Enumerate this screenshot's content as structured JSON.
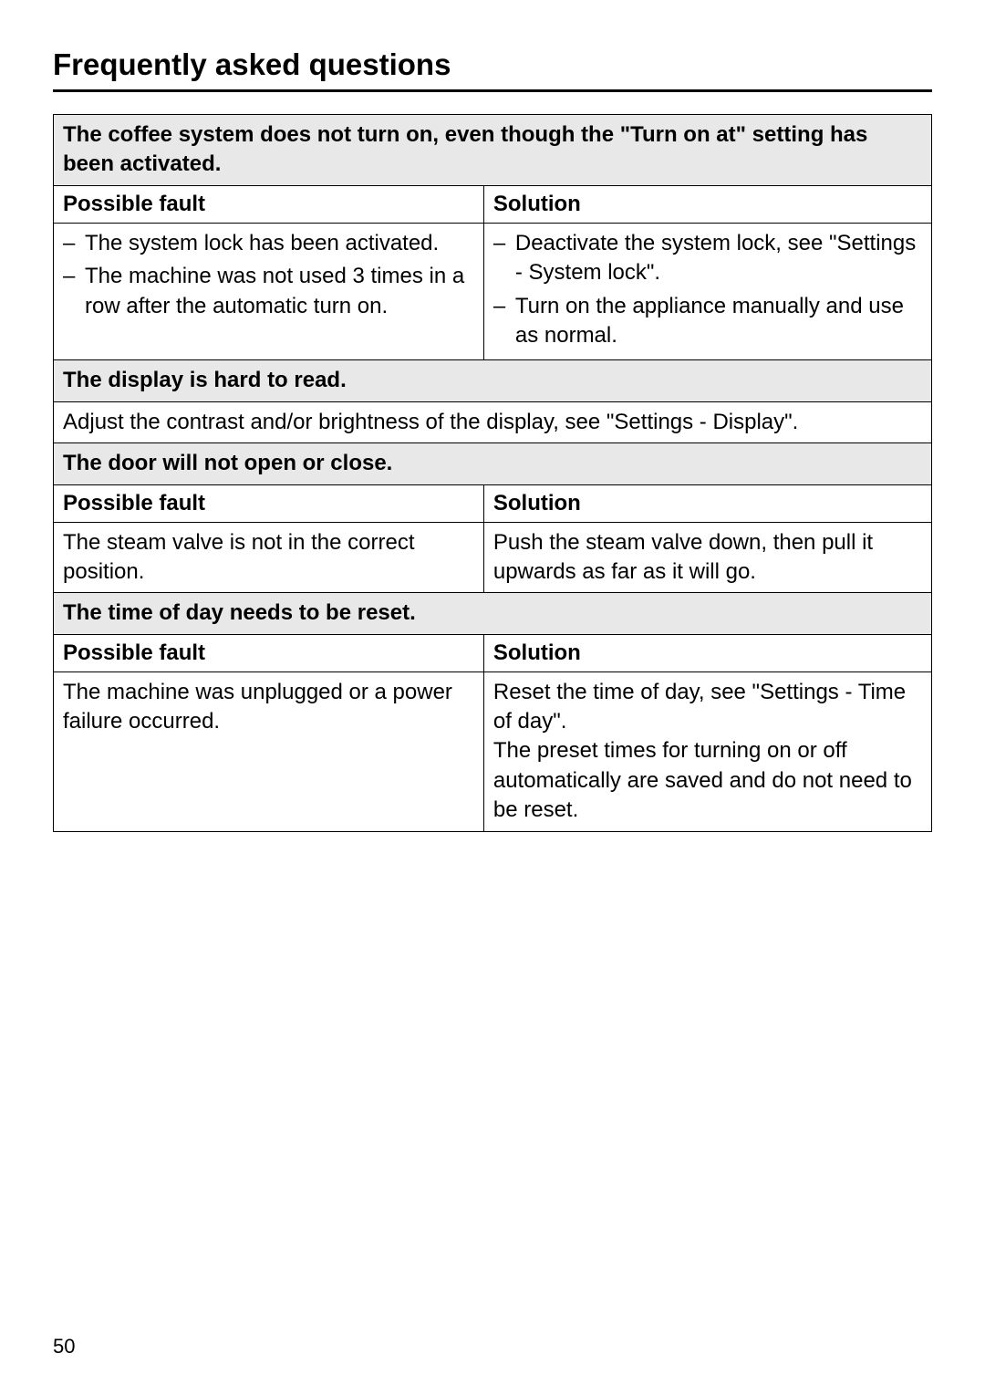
{
  "page": {
    "title": "Frequently asked questions",
    "number": "50"
  },
  "sections": [
    {
      "heading": "The coffee system does not turn on, even though the \"Turn on at\" setting has been activated.",
      "hasColumns": true,
      "colHeaders": {
        "left": "Possible fault",
        "right": "Solution"
      },
      "faults": [
        "The system lock has been activated.",
        "The machine was not used 3 times in a row after the automatic turn on."
      ],
      "solutions": [
        "Deactivate the system lock, see \"Settings - System lock\".",
        "Turn on the appliance manually and use as normal."
      ]
    },
    {
      "heading": "The display is hard to read.",
      "hasColumns": false,
      "fullText": "Adjust the contrast and/or brightness of the display, see \"Settings - Display\"."
    },
    {
      "heading": "The door will not open or close.",
      "hasColumns": true,
      "colHeaders": {
        "left": "Possible fault",
        "right": "Solution"
      },
      "faultText": "The steam valve is not in the correct position.",
      "solutionText": "Push the steam valve down, then pull it upwards as far as it will go."
    },
    {
      "heading": "The time of day needs to be reset.",
      "hasColumns": true,
      "colHeaders": {
        "left": "Possible fault",
        "right": "Solution"
      },
      "faultText": "The machine was unplugged or a power failure occurred.",
      "solutionText": "Reset the time of day, see \"Settings - Time of day\".\nThe preset times for turning on or off automatically are saved and do not need to be reset."
    }
  ],
  "style": {
    "backgroundColor": "#ffffff",
    "textColor": "#000000",
    "headerBg": "#e8e8e8",
    "borderColor": "#000000",
    "titleFontSize": 33,
    "bodyFontSize": 24
  }
}
